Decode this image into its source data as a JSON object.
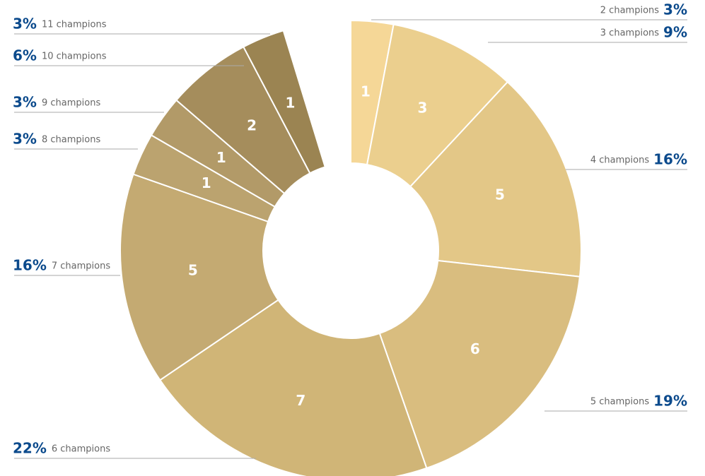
{
  "chart_data": {
    "type": "donut",
    "categories": [
      "2 champions",
      "3 champions",
      "4 champions",
      "5 champions",
      "6 champions",
      "7 champions",
      "8 champions",
      "9 champions",
      "10 champions",
      "11 champions"
    ],
    "values": [
      1,
      3,
      5,
      6,
      7,
      5,
      1,
      1,
      2,
      1
    ],
    "percent_labels": [
      "3%",
      "9%",
      "16%",
      "19%",
      "22%",
      "16%",
      "3%",
      "3%",
      "6%",
      "3%"
    ],
    "colors": [
      "#f5d797",
      "#ebcf8e",
      "#e3c787",
      "#d9bd7f",
      "#d0b577",
      "#c4aa72",
      "#bba36f",
      "#b29a68",
      "#a58d5c",
      "#9b8452"
    ]
  }
}
